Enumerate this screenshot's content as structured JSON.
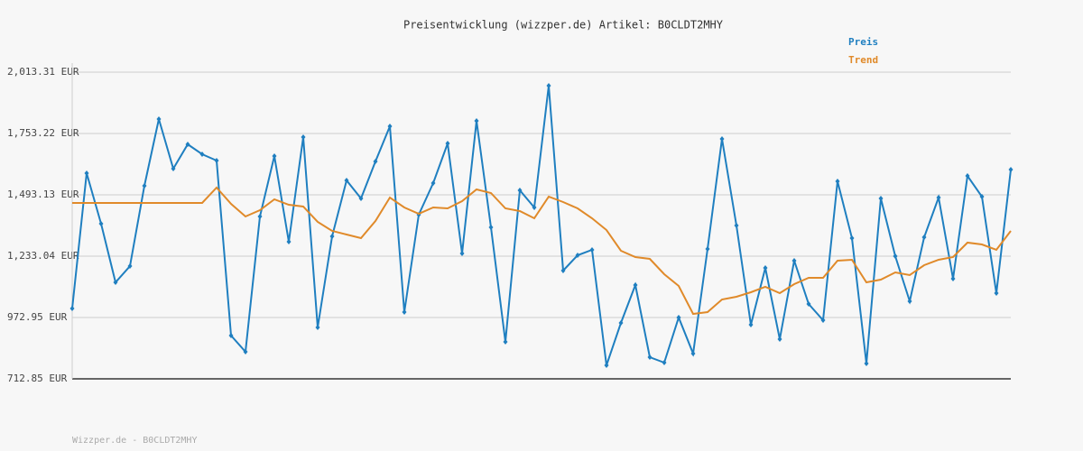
{
  "chart_data": {
    "type": "line",
    "title": "Preisentwicklung (wizzper.de) Artikel: B0CLDT2MHY",
    "categories": [
      null,
      null,
      null,
      null,
      null,
      null,
      null,
      null,
      null,
      null,
      null,
      null,
      null,
      null,
      null,
      null,
      null,
      null,
      null,
      null,
      null,
      null,
      null,
      null,
      null,
      null,
      null,
      null,
      null,
      null,
      null,
      null,
      null,
      null,
      null,
      null,
      null,
      null,
      null,
      null,
      null,
      null,
      null,
      null,
      null,
      null,
      null,
      null,
      null,
      null,
      null,
      null,
      null,
      null,
      null,
      null,
      null,
      null,
      null,
      null,
      null,
      null,
      null,
      null,
      null,
      null
    ],
    "series": [
      {
        "name": "Preis",
        "color": "#1f7fc0",
        "markers": true,
        "values": [
          1011.2,
          1584.95,
          1370.75,
          1122.15,
          1190.95,
          1531.4,
          1814.45,
          1604.05,
          1707.35,
          1665.25,
          1638.5,
          896.45,
          827.6,
          1401.35,
          1657.65,
          1294.25,
          1737.95,
          930.85,
          1317.2,
          1554.35,
          1477.85,
          1634.65,
          1783.85,
          995.9,
          1409.0,
          1542.85,
          1711.15,
          1244.55,
          1806.8,
          1355.45,
          869.65,
          1512.25,
          1439.6,
          1955.95,
          1171.85,
          1236.85,
          1259.85,
          770.25,
          950.0,
          1110.65,
          804.65,
          781.7,
          972.95,
          819.95,
          1263.65,
          1730.3,
          1363.1,
          942.35,
          1183.35,
          881.15,
          1213.95,
          1030.35,
          961.45,
          1550.55,
          1309.55,
          777.85,
          1477.85,
          1233.05,
          1041.8,
          1313.35,
          1481.65,
          1137.45,
          1573.45,
          1485.5,
          1076.25,
          1600.25
        ]
      },
      {
        "name": "Trend",
        "color": "#e08a2a",
        "markers": false,
        "values": [
          1458.75,
          1458.75,
          1458.75,
          1458.75,
          1458.75,
          1458.75,
          1458.75,
          1458.75,
          1458.75,
          1458.75,
          1523.75,
          1454.9,
          1401.35,
          1428.15,
          1474.05,
          1451.05,
          1443.45,
          1378.4,
          1340.15,
          1324.85,
          1309.55,
          1382.25,
          1481.65,
          1439.6,
          1412.85,
          1439.6,
          1435.75,
          1466.35,
          1516.1,
          1500.8,
          1435.75,
          1424.3,
          1393.7,
          1485.5,
          1462.55,
          1435.75,
          1393.7,
          1343.95,
          1256.0,
          1229.25,
          1221.55,
          1156.55,
          1106.85,
          988.25,
          995.9,
          1049.45,
          1060.95,
          1080.05,
          1103.0,
          1076.25,
          1114.45,
          1141.25,
          1141.25,
          1213.95,
          1217.75,
          1122.15,
          1133.6,
          1164.2,
          1152.75,
          1194.8,
          1217.75,
          1229.25,
          1290.45,
          1282.75,
          1259.85,
          1340.15
        ]
      }
    ],
    "ylim": [
      712.85,
      2013.31
    ],
    "yticks": [
      {
        "value": 712.85,
        "label": "712.85 EUR"
      },
      {
        "value": 972.95,
        "label": "972.95 EUR"
      },
      {
        "value": 1233.04,
        "label": "1,233.04 EUR"
      },
      {
        "value": 1493.13,
        "label": "1,493.13 EUR"
      },
      {
        "value": 1753.22,
        "label": "1,753.22 EUR"
      },
      {
        "value": 2013.31,
        "label": "2,013.31 EUR"
      }
    ],
    "grid": true,
    "legend": "top-right",
    "footer": "Wizzper.de - B0CLDT2MHY"
  }
}
